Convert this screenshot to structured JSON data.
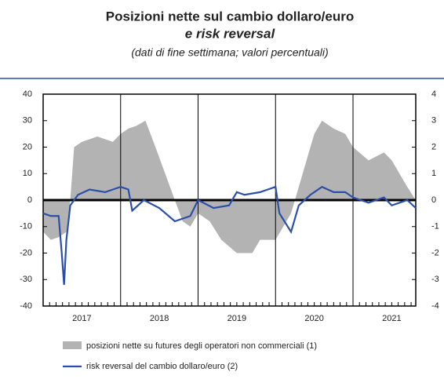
{
  "chart_data": {
    "type": "area_line",
    "title": [
      "Posizioni nette sul cambio dollaro/euro",
      "e risk reversal"
    ],
    "subtitle": "(dati di fine settimana; valori percentuali)",
    "categories": [
      "2017",
      "2018",
      "2019",
      "2020",
      "2021"
    ],
    "xlim": [
      2017,
      2021.81
    ],
    "ylim": [
      -40,
      40
    ],
    "yticks": [
      -40,
      -30,
      -20,
      -10,
      0,
      10,
      20,
      30,
      40
    ],
    "y2lim": [
      -4,
      4
    ],
    "y2ticks": [
      -4,
      -3,
      -2,
      -1,
      0,
      1,
      2,
      3,
      4
    ],
    "series": [
      {
        "name": "posizioni nette su futures degli operatori non commerciali (1)",
        "color": "#b3b3b3",
        "x": [
          2017,
          2017.1,
          2017.2,
          2017.3,
          2017.35,
          2017.4,
          2017.5,
          2017.7,
          2017.9,
          2018.0,
          2018.1,
          2018.2,
          2018.32,
          2018.45,
          2018.6,
          2018.7,
          2018.8,
          2018.9,
          2019.0,
          2019.15,
          2019.3,
          2019.5,
          2019.7,
          2019.8,
          2020.0,
          2020.2,
          2020.3,
          2020.4,
          2020.5,
          2020.6,
          2020.75,
          2020.9,
          2021.0,
          2021.2,
          2021.4,
          2021.5,
          2021.7,
          2021.81
        ],
        "values": [
          -12,
          -15,
          -14,
          -12,
          0,
          20,
          22,
          24,
          22,
          25,
          27,
          28,
          30,
          20,
          8,
          0,
          -8,
          -10,
          -5,
          -8,
          -15,
          -20,
          -20,
          -15,
          -15,
          -5,
          5,
          15,
          25,
          30,
          27,
          25,
          20,
          15,
          18,
          15,
          5,
          0
        ]
      },
      {
        "name": "risk reversal del cambio dollaro/euro (2)",
        "color": "#2b4fa8",
        "axis": "y2",
        "x": [
          2017,
          2017.1,
          2017.2,
          2017.24,
          2017.27,
          2017.3,
          2017.35,
          2017.45,
          2017.6,
          2017.8,
          2018.0,
          2018.1,
          2018.15,
          2018.3,
          2018.5,
          2018.7,
          2018.9,
          2019.0,
          2019.2,
          2019.4,
          2019.5,
          2019.6,
          2019.8,
          2019.9,
          2020.0,
          2020.05,
          2020.2,
          2020.3,
          2020.45,
          2020.6,
          2020.75,
          2020.9,
          2021.0,
          2021.2,
          2021.4,
          2021.5,
          2021.7,
          2021.81
        ],
        "values": [
          -0.5,
          -0.6,
          -0.6,
          -2.0,
          -3.2,
          -1.5,
          -0.2,
          0.2,
          0.4,
          0.3,
          0.5,
          0.4,
          -0.4,
          0,
          -0.3,
          -0.8,
          -0.6,
          0,
          -0.3,
          -0.2,
          0.3,
          0.2,
          0.3,
          0.4,
          0.5,
          -0.5,
          -1.2,
          -0.2,
          0.2,
          0.5,
          0.3,
          0.3,
          0.1,
          -0.1,
          0.1,
          -0.2,
          0,
          -0.3
        ]
      }
    ]
  }
}
